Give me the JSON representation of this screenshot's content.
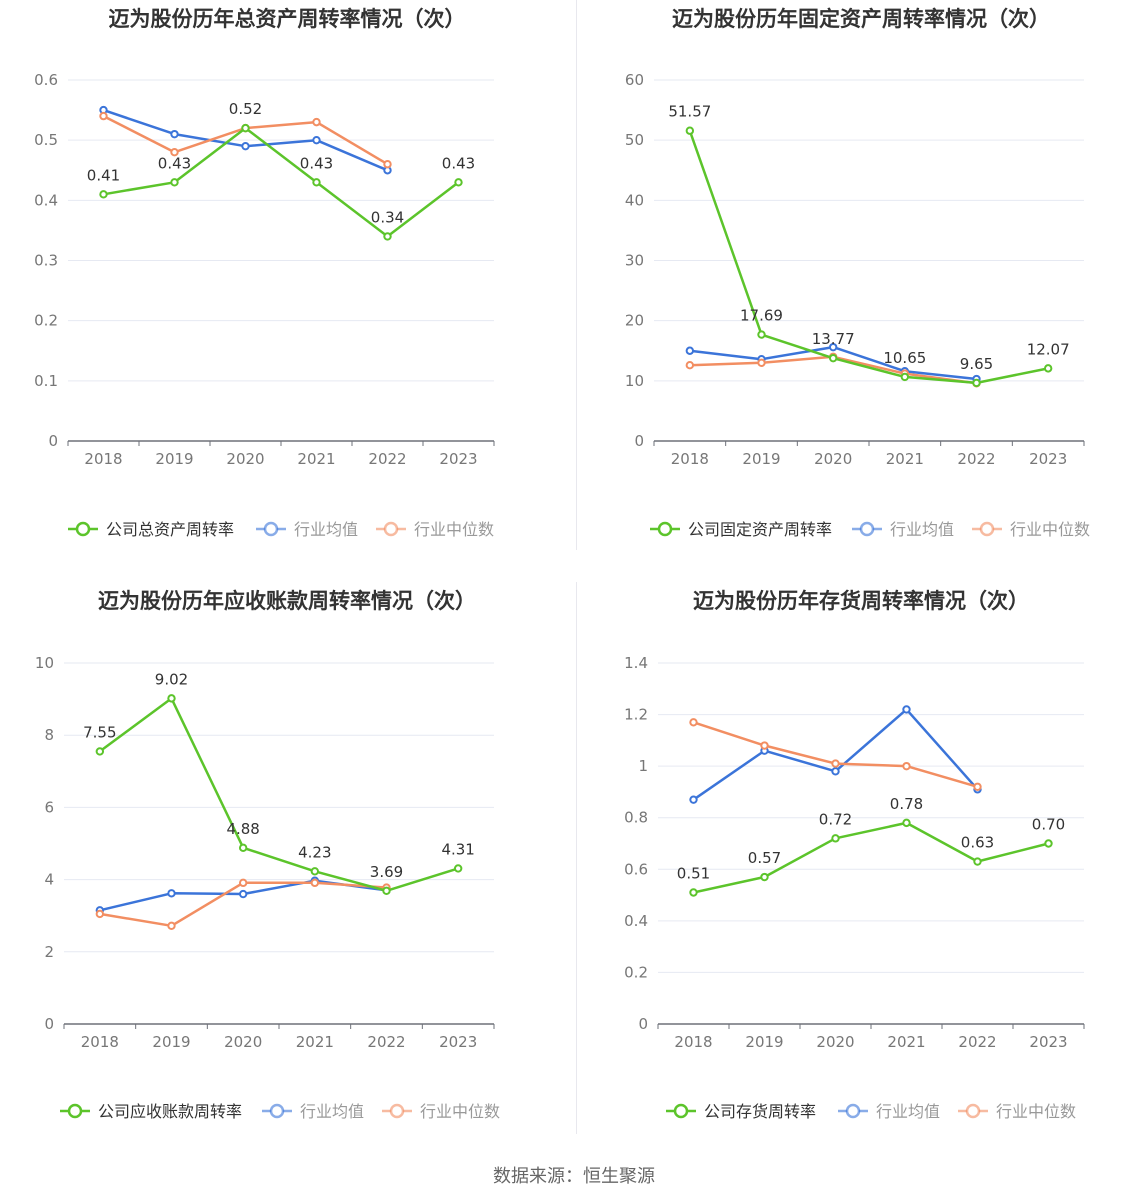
{
  "source_label": "数据来源：恒生聚源",
  "colors": {
    "company": "#5cc42b",
    "avg": "#3b74d9",
    "median": "#f28e62"
  },
  "chart_data": [
    {
      "type": "line",
      "title": "迈为股份历年总资产周转率情况（次）",
      "x": [
        "2018",
        "2019",
        "2020",
        "2021",
        "2022",
        "2023"
      ],
      "ylim": [
        0,
        0.6
      ],
      "yticks": [
        "0",
        "0.1",
        "0.2",
        "0.3",
        "0.4",
        "0.5",
        "0.6"
      ],
      "series": [
        {
          "name": "公司总资产周转率",
          "values": [
            0.41,
            0.43,
            0.52,
            0.43,
            0.34,
            0.43
          ],
          "labels": [
            "0.41",
            "0.43",
            "0.52",
            "0.43",
            "0.34",
            "0.43"
          ]
        },
        {
          "name": "行业均值",
          "values": [
            0.55,
            0.51,
            0.49,
            0.5,
            0.45,
            null
          ]
        },
        {
          "name": "行业中位数",
          "values": [
            0.54,
            0.48,
            0.52,
            0.53,
            0.46,
            null
          ]
        }
      ]
    },
    {
      "type": "line",
      "title": "迈为股份历年固定资产周转率情况（次）",
      "x": [
        "2018",
        "2019",
        "2020",
        "2021",
        "2022",
        "2023"
      ],
      "ylim": [
        0,
        60
      ],
      "yticks": [
        "0",
        "10",
        "20",
        "30",
        "40",
        "50",
        "60"
      ],
      "series": [
        {
          "name": "公司固定资产周转率",
          "values": [
            51.57,
            17.69,
            13.77,
            10.65,
            9.65,
            12.07
          ],
          "labels": [
            "51.57",
            "17.69",
            "13.77",
            "10.65",
            "9.65",
            "12.07"
          ]
        },
        {
          "name": "行业均值",
          "values": [
            15.0,
            13.6,
            15.6,
            11.6,
            10.3,
            null
          ]
        },
        {
          "name": "行业中位数",
          "values": [
            12.6,
            13.0,
            14.0,
            11.2,
            9.6,
            null
          ]
        }
      ]
    },
    {
      "type": "line",
      "title": "迈为股份历年应收账款周转率情况（次）",
      "x": [
        "2018",
        "2019",
        "2020",
        "2021",
        "2022",
        "2023"
      ],
      "ylim": [
        0,
        10
      ],
      "yticks": [
        "0",
        "2",
        "4",
        "6",
        "8",
        "10"
      ],
      "series": [
        {
          "name": "公司应收账款周转率",
          "values": [
            7.55,
            9.02,
            4.88,
            4.23,
            3.69,
            4.31
          ],
          "labels": [
            "7.55",
            "9.02",
            "4.88",
            "4.23",
            "3.69",
            "4.31"
          ]
        },
        {
          "name": "行业均值",
          "values": [
            3.15,
            3.62,
            3.6,
            3.97,
            3.7,
            null
          ]
        },
        {
          "name": "行业中位数",
          "values": [
            3.05,
            2.72,
            3.91,
            3.91,
            3.78,
            null
          ]
        }
      ]
    },
    {
      "type": "line",
      "title": "迈为股份历年存货周转率情况（次）",
      "x": [
        "2018",
        "2019",
        "2020",
        "2021",
        "2022",
        "2023"
      ],
      "ylim": [
        0,
        1.4
      ],
      "yticks": [
        "0",
        "0.2",
        "0.4",
        "0.6",
        "0.8",
        "1",
        "1.2",
        "1.4"
      ],
      "series": [
        {
          "name": "公司存货周转率",
          "values": [
            0.51,
            0.57,
            0.72,
            0.78,
            0.63,
            0.7
          ],
          "labels": [
            "0.51",
            "0.57",
            "0.72",
            "0.78",
            "0.63",
            "0.70"
          ]
        },
        {
          "name": "行业均值",
          "values": [
            0.87,
            1.06,
            0.98,
            1.22,
            0.91,
            null
          ]
        },
        {
          "name": "行业中位数",
          "values": [
            1.17,
            1.08,
            1.01,
            1.0,
            0.92,
            null
          ]
        }
      ]
    }
  ]
}
